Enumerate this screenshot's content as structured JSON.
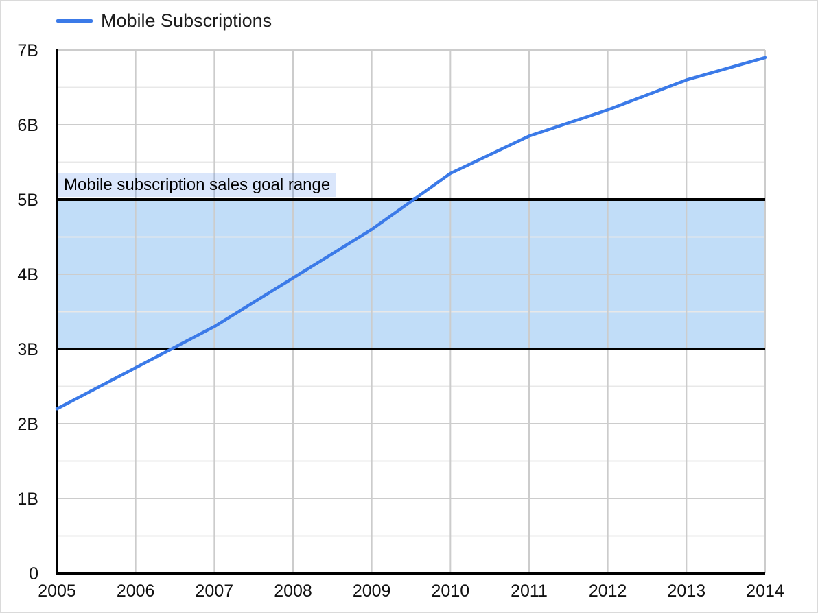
{
  "frame": {
    "border_color": "#dadada",
    "background": "#ffffff"
  },
  "legend": {
    "label": "Mobile Subscriptions",
    "swatch_color": "#3b7ae8"
  },
  "band_label": {
    "text": "Mobile subscription sales goal range",
    "background": "rgba(59,122,232,0.19)",
    "text_color": "#000000"
  },
  "chart_data": {
    "type": "line",
    "title": "",
    "xlabel": "",
    "ylabel": "",
    "units": "billions of subscriptions",
    "x": [
      "2005",
      "2006",
      "2007",
      "2008",
      "2009",
      "2010",
      "2011",
      "2012",
      "2013",
      "2014"
    ],
    "series": [
      {
        "name": "Mobile Subscriptions",
        "color": "#3b7ae8",
        "values": [
          2.2,
          2.75,
          3.3,
          3.95,
          4.6,
          5.35,
          5.85,
          6.2,
          6.6,
          6.9
        ]
      }
    ],
    "ylim": [
      0,
      7
    ],
    "y_axis": {
      "ticks": [
        {
          "value": 0,
          "label": "0"
        },
        {
          "value": 1,
          "label": "1B"
        },
        {
          "value": 2,
          "label": "2B"
        },
        {
          "value": 3,
          "label": "3B"
        },
        {
          "value": 4,
          "label": "4B"
        },
        {
          "value": 5,
          "label": "5B"
        },
        {
          "value": 6,
          "label": "6B"
        },
        {
          "value": 7,
          "label": "7B"
        }
      ]
    },
    "grid": {
      "major_color": "#cccccc",
      "minor_color": "#e8e8e8",
      "y_minor_step": 0.5,
      "vertical_gridline_per_year": true
    },
    "band": {
      "from": 3,
      "to": 5,
      "fill": "#c1ddf8",
      "border_color": "#000000",
      "label": "Mobile subscription sales goal range"
    },
    "axis_color": "#000000",
    "tick_label_color": "#111111",
    "legend_position": "top-left",
    "grid_on": true
  }
}
